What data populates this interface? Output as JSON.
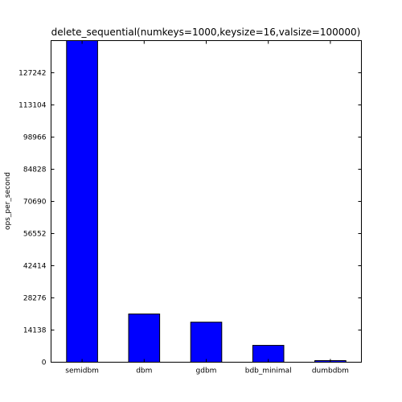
{
  "chart_data": {
    "type": "bar",
    "title": "delete_sequential(numkeys=1000,keysize=16,valsize=100000)",
    "xlabel": "",
    "ylabel": "ops_per_second",
    "categories": [
      "semidbm",
      "dbm",
      "gdbm",
      "bdb_minimal",
      "dumbdbm"
    ],
    "values": [
      141380,
      21200,
      17600,
      7400,
      700
    ],
    "ylim": [
      0,
      141380
    ],
    "yticks": [
      0,
      14138,
      28276,
      42414,
      56552,
      70690,
      84828,
      98966,
      113104,
      127242
    ],
    "bar_color": "#0000ff",
    "edge_color": "#000000",
    "grid": false
  }
}
